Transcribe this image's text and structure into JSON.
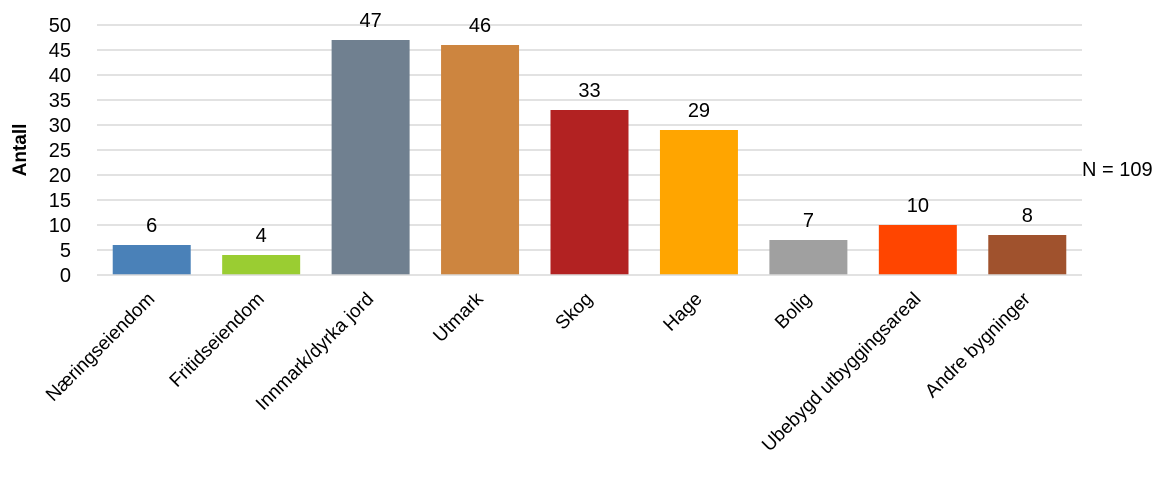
{
  "chart_data": {
    "type": "bar",
    "categories": [
      "Næringseiendom",
      "Fritidseiendom",
      "Innmark/dyrka jord",
      "Utmark",
      "Skog",
      "Hage",
      "Bolig",
      "Ubebygd utbyggingsareal",
      "Andre bygninger"
    ],
    "values": [
      6,
      4,
      47,
      46,
      33,
      29,
      7,
      10,
      8
    ],
    "colors": [
      "#4a81b8",
      "#9acd32",
      "#708090",
      "#cd853f",
      "#b22222",
      "#ffa500",
      "#a0a0a0",
      "#ff4500",
      "#a0522d"
    ],
    "title": "",
    "xlabel": "",
    "ylabel": "Antall",
    "ylim": [
      0,
      50
    ],
    "yticks": [
      0,
      5,
      10,
      15,
      20,
      25,
      30,
      35,
      40,
      45,
      50
    ],
    "grid": true,
    "data_labels": true,
    "annotation": "N = 109"
  }
}
